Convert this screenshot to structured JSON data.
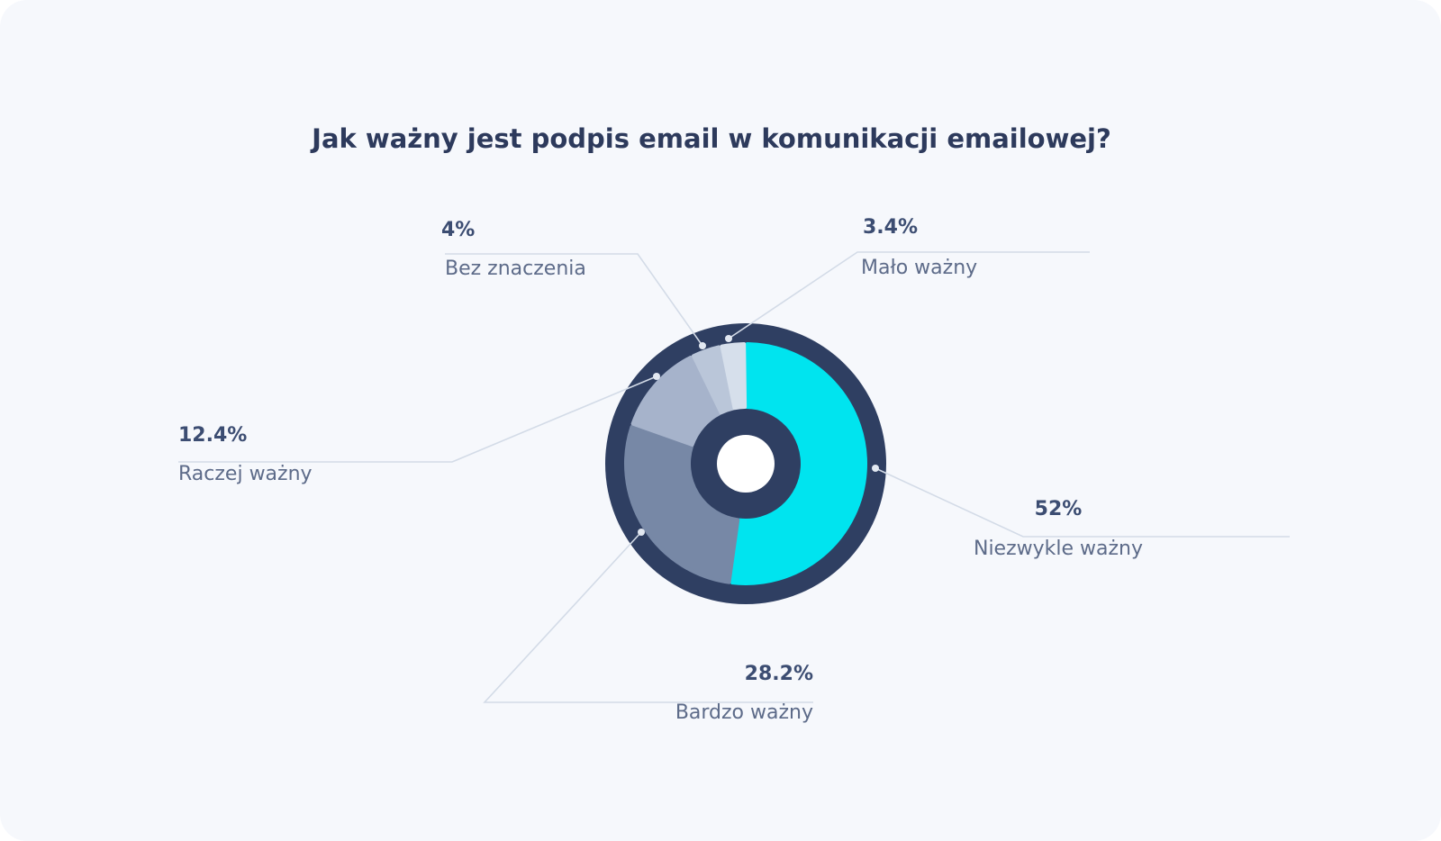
{
  "chart_data": {
    "type": "pie",
    "title": "Jak ważny jest podpis email w komunikacji emailowej?",
    "unit": "%",
    "slices": [
      {
        "label": "Niezwykle ważny",
        "value": 52,
        "value_label": "52%",
        "color": "#00e4ef"
      },
      {
        "label": "Bardzo ważny",
        "value": 28.2,
        "value_label": "28.2%",
        "color": "#7788a6"
      },
      {
        "label": "Raczej ważny",
        "value": 12.4,
        "value_label": "12.4%",
        "color": "#a6b3cb"
      },
      {
        "label": "Bez znaczenia",
        "value": 4,
        "value_label": "4%",
        "color": "#bac6d9"
      },
      {
        "label": "Mało ważny",
        "value": 3.4,
        "value_label": "3.4%",
        "color": "#d6dfeb"
      }
    ],
    "ring_color": "#2f3f62",
    "center_color": "#ffffff",
    "leader_color": "#d3dbe7"
  }
}
